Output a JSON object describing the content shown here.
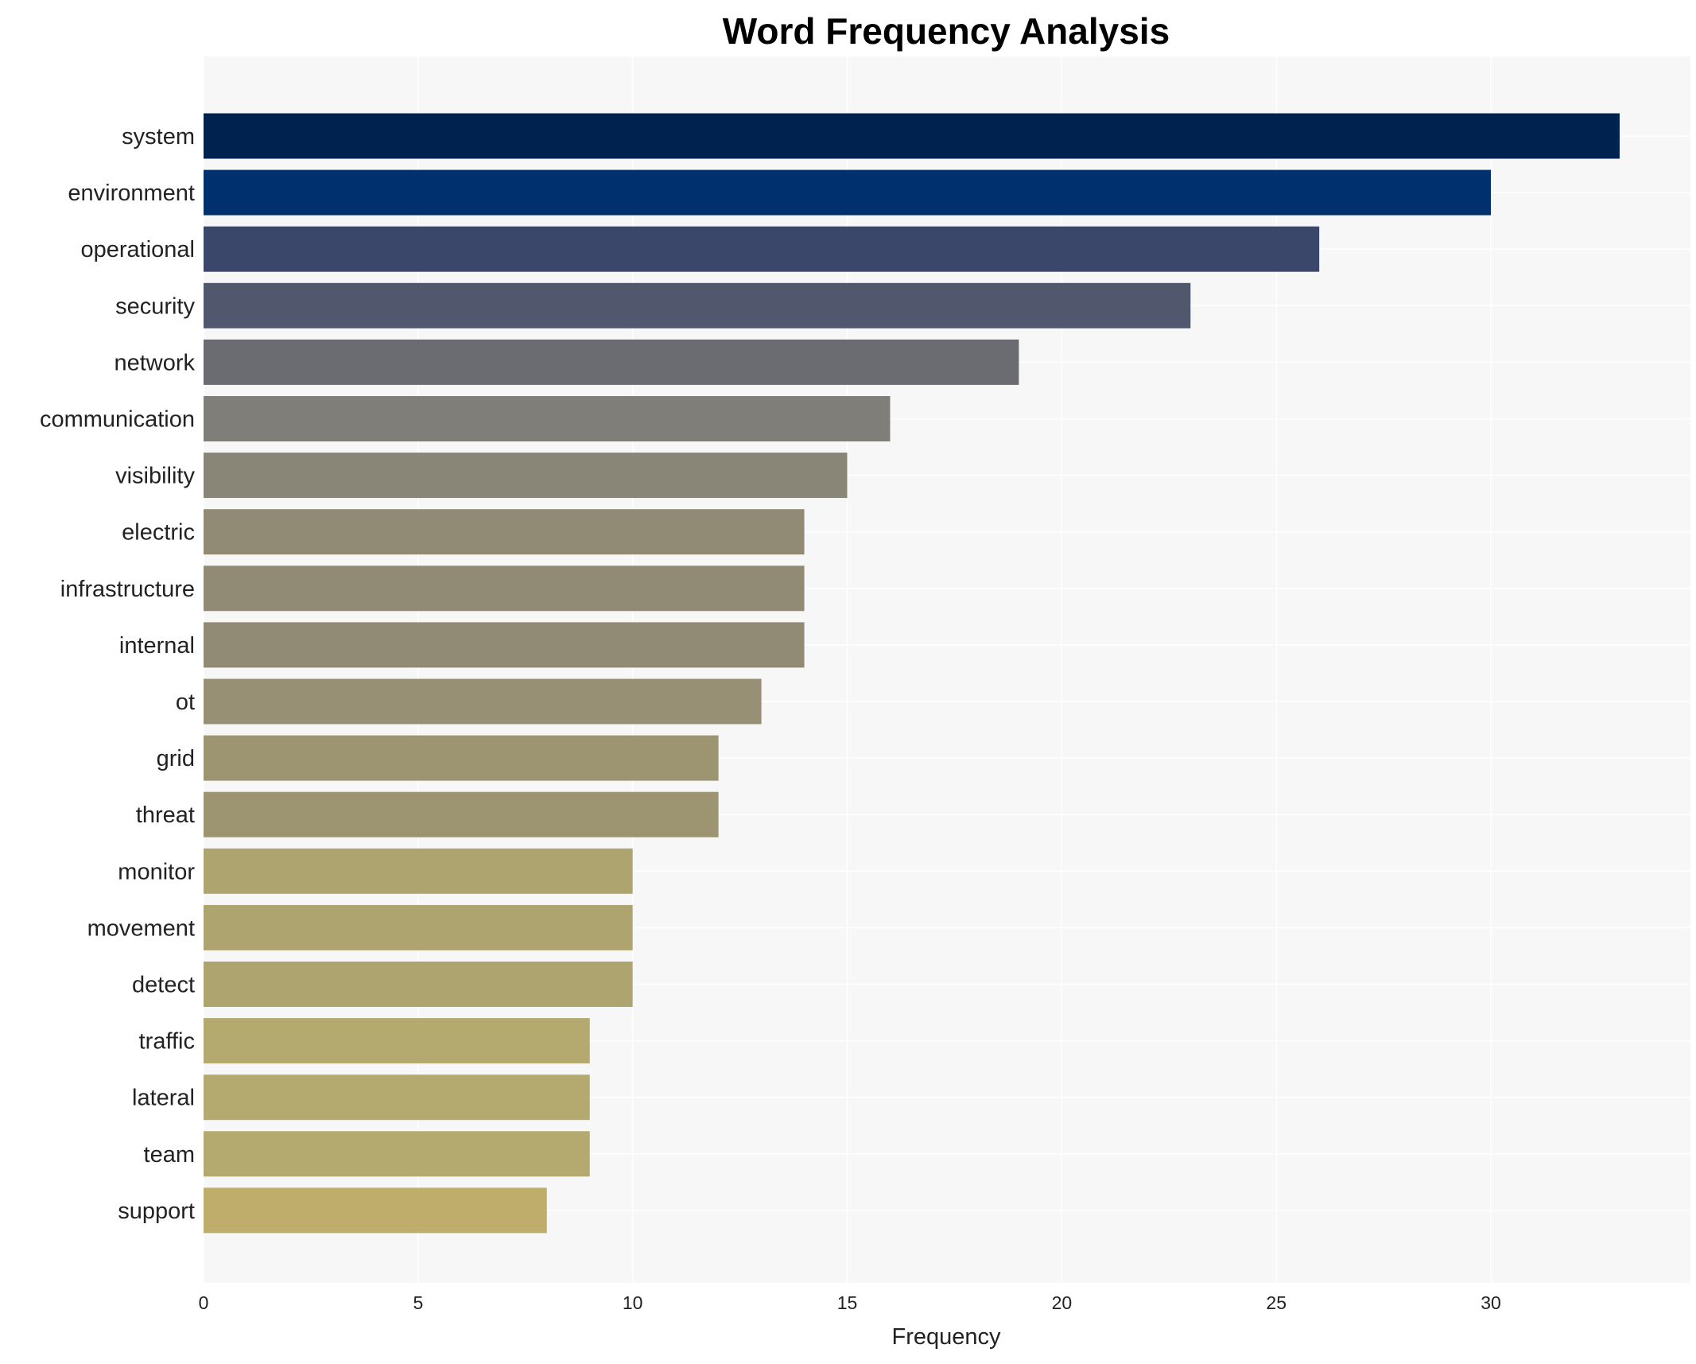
{
  "chart_data": {
    "type": "bar",
    "orientation": "horizontal",
    "title": "Word Frequency Analysis",
    "xlabel": "Frequency",
    "ylabel": "",
    "xlim": [
      0,
      34.65
    ],
    "xticks": [
      0,
      5,
      10,
      15,
      20,
      25,
      30
    ],
    "grid": true,
    "categories": [
      "system",
      "environment",
      "operational",
      "security",
      "network",
      "communication",
      "visibility",
      "electric",
      "infrastructure",
      "internal",
      "ot",
      "grid",
      "threat",
      "monitor",
      "movement",
      "detect",
      "traffic",
      "lateral",
      "team",
      "support"
    ],
    "values": [
      33,
      30,
      26,
      23,
      19,
      16,
      15,
      14,
      14,
      14,
      13,
      12,
      12,
      10,
      10,
      10,
      9,
      9,
      9,
      8
    ],
    "colors": [
      "#00224e",
      "#01306f",
      "#3a476a",
      "#51586e",
      "#6b6c71",
      "#7f7e78",
      "#8a8677",
      "#918a75",
      "#918a75",
      "#918a75",
      "#979074",
      "#9d9572",
      "#9d9572",
      "#ada470",
      "#ada470",
      "#ada470",
      "#b4a96e",
      "#b4a96e",
      "#b4a96e",
      "#bead6b"
    ],
    "background": "#f7f7f7"
  }
}
